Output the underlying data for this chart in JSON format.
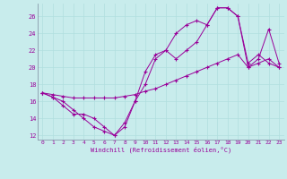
{
  "xlabel": "Windchill (Refroidissement éolien,°C)",
  "bg_color": "#c8ecec",
  "line_color": "#990099",
  "grid_color": "#b0dede",
  "xlim": [
    -0.5,
    23.5
  ],
  "ylim": [
    11.5,
    27.5
  ],
  "yticks": [
    12,
    14,
    16,
    18,
    20,
    22,
    24,
    26
  ],
  "xticks": [
    0,
    1,
    2,
    3,
    4,
    5,
    6,
    7,
    8,
    9,
    10,
    11,
    12,
    13,
    14,
    15,
    16,
    17,
    18,
    19,
    20,
    21,
    22,
    23
  ],
  "line1_x": [
    0,
    1,
    2,
    3,
    4,
    5,
    6,
    7,
    8,
    9,
    10,
    11,
    12,
    13,
    14,
    15,
    16,
    17,
    18,
    19,
    20,
    21,
    22,
    23
  ],
  "line1_y": [
    17,
    16.5,
    15.5,
    14.5,
    14.5,
    14,
    13,
    12,
    13.5,
    16,
    19.5,
    21.5,
    22,
    24,
    25,
    25.5,
    25,
    27,
    27,
    26,
    20.5,
    21.5,
    20.5,
    20
  ],
  "line2_x": [
    0,
    1,
    2,
    3,
    4,
    5,
    6,
    7,
    8,
    9,
    10,
    11,
    12,
    13,
    14,
    15,
    16,
    17,
    18,
    19,
    20,
    21,
    22,
    23
  ],
  "line2_y": [
    17,
    16.5,
    16,
    15,
    14,
    13,
    12.5,
    12,
    13,
    16,
    18,
    21,
    22,
    21,
    22,
    23,
    25,
    27,
    27,
    26,
    20,
    21,
    24.5,
    20.5
  ],
  "line3_x": [
    0,
    1,
    2,
    3,
    4,
    5,
    6,
    7,
    8,
    9,
    10,
    11,
    12,
    13,
    14,
    15,
    16,
    17,
    18,
    19,
    20,
    21,
    22,
    23
  ],
  "line3_y": [
    17,
    16.8,
    16.6,
    16.4,
    16.4,
    16.4,
    16.4,
    16.4,
    16.6,
    16.8,
    17.2,
    17.5,
    18,
    18.5,
    19,
    19.5,
    20,
    20.5,
    21,
    21.5,
    20,
    20.5,
    21,
    20
  ]
}
